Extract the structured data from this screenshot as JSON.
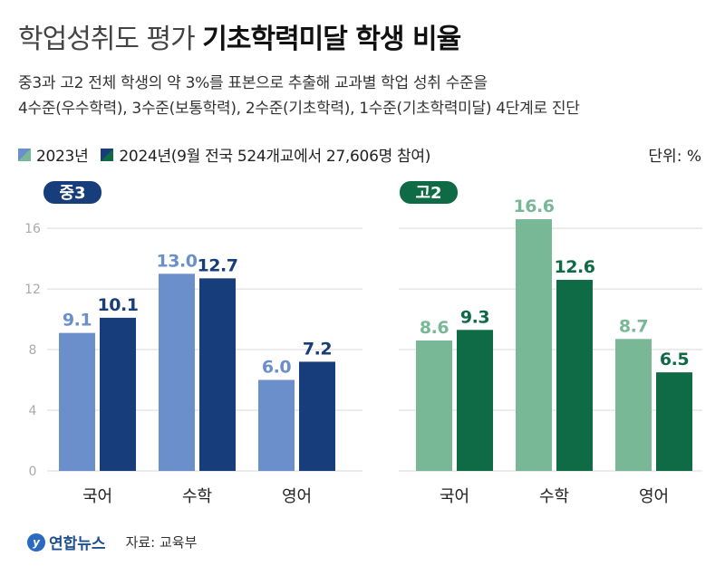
{
  "header": {
    "title_light": "학업성취도 평가 ",
    "title_bold": "기초학력미달 학생 비율",
    "subtitle_line1": "중3과 고2 전체 학생의 약 3%를 표본으로 추출해 교과별 학업 성취 수준을",
    "subtitle_line2": "4수준(우수학력), 3수준(보통학력), 2수준(기초학력), 1수준(기초학력미달) 4단계로 진단"
  },
  "legend": {
    "item1": "2023년",
    "item2": "2024년(9월 전국 524개교에서 27,606명 참여)"
  },
  "unit": "단위: %",
  "footer": {
    "logo": "연합뉴스",
    "source": "자료: 교육부"
  },
  "colors": {
    "middle_2023": "#6b8fca",
    "middle_2024": "#173d7a",
    "high_2023": "#78b896",
    "high_2024": "#0e6b45",
    "grid": "#d9d9d9",
    "axis_text": "#aaaaaa"
  },
  "chart_data": [
    {
      "type": "bar",
      "badge": "중3",
      "categories": [
        "국어",
        "수학",
        "영어"
      ],
      "series": [
        {
          "name": "2023년",
          "values": [
            9.1,
            13.0,
            6.0
          ],
          "labels": [
            "9.1",
            "13.0",
            "6.0"
          ]
        },
        {
          "name": "2024년",
          "values": [
            10.1,
            12.7,
            7.2
          ],
          "labels": [
            "10.1",
            "12.7",
            "7.2"
          ]
        }
      ],
      "yticks": [
        0,
        4,
        8,
        12,
        16
      ],
      "ylim": [
        0,
        17.2
      ],
      "grid": true
    },
    {
      "type": "bar",
      "badge": "고2",
      "categories": [
        "국어",
        "수학",
        "영어"
      ],
      "series": [
        {
          "name": "2023년",
          "values": [
            8.6,
            16.6,
            8.7
          ],
          "labels": [
            "8.6",
            "16.6",
            "8.7"
          ]
        },
        {
          "name": "2024년",
          "values": [
            9.3,
            12.6,
            6.5
          ],
          "labels": [
            "9.3",
            "12.6",
            "6.5"
          ]
        }
      ],
      "ylim": [
        0,
        17.2
      ],
      "grid": true
    }
  ]
}
